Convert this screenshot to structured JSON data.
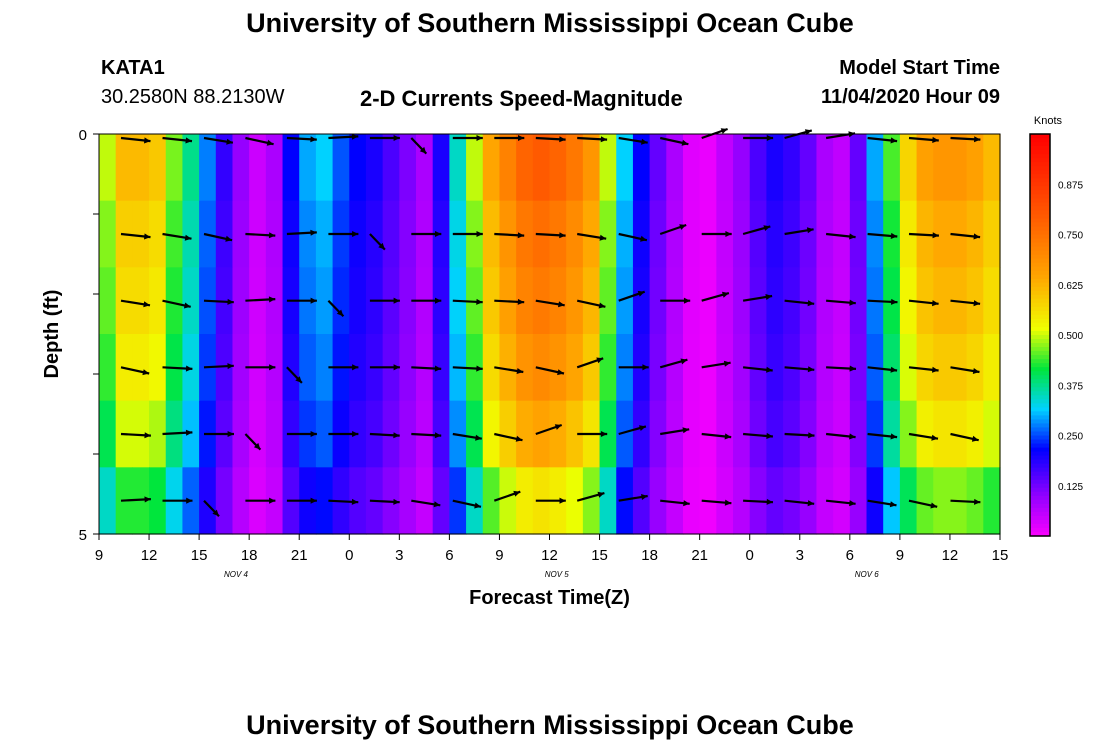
{
  "header": {
    "title": "University of Southern Mississippi Ocean Cube",
    "station_id": "KATA1",
    "station_coords": "30.2580N 88.2130W",
    "plot_title": "2-D Currents Speed-Magnitude",
    "model_label": "Model Start Time",
    "model_start": "11/04/2020 Hour 09"
  },
  "footer": {
    "title": "University of Southern Mississippi Ocean Cube"
  },
  "colorbar": {
    "unit": "Knots",
    "ticks": [
      "0.125",
      "0.250",
      "0.375",
      "0.500",
      "0.625",
      "0.750",
      "0.875"
    ],
    "range": [
      0,
      1
    ]
  },
  "chart_data": {
    "type": "heatmap",
    "xlabel": "Forecast Time(Z)",
    "ylabel": "Depth (ft)",
    "x_ticks": [
      "9",
      "12",
      "15",
      "18",
      "21",
      "0",
      "3",
      "6",
      "9",
      "12",
      "15",
      "18",
      "21",
      "0",
      "3",
      "6",
      "9",
      "12",
      "15"
    ],
    "date_labels": [
      "NOV 4",
      "NOV 5",
      "NOV 6"
    ],
    "y_ticks": [
      "0",
      "5"
    ],
    "ylim": [
      0,
      5
    ],
    "depth_rows": 6,
    "speed_knots_by_time": [
      0.5,
      0.62,
      0.62,
      0.6,
      0.47,
      0.38,
      0.28,
      0.18,
      0.1,
      0.05,
      0.08,
      0.22,
      0.3,
      0.32,
      0.26,
      0.22,
      0.2,
      0.16,
      0.12,
      0.08,
      0.2,
      0.35,
      0.5,
      0.65,
      0.72,
      0.78,
      0.8,
      0.78,
      0.74,
      0.68,
      0.5,
      0.32,
      0.22,
      0.14,
      0.08,
      0.03,
      0.02,
      0.06,
      0.1,
      0.16,
      0.2,
      0.18,
      0.14,
      0.08,
      0.06,
      0.14,
      0.3,
      0.45,
      0.58,
      0.66,
      0.68,
      0.68,
      0.66,
      0.62
    ],
    "depth_factor": [
      1.0,
      0.95,
      0.92,
      0.88,
      0.82,
      0.7
    ],
    "arrow_rows": [
      0,
      1,
      2,
      3,
      4,
      5
    ],
    "arrow_directions_deg": [
      10,
      10,
      15,
      20,
      5,
      -5,
      0,
      60,
      0,
      0,
      5,
      5,
      15,
      20,
      -30,
      0,
      -25,
      -15,
      10,
      8,
      5
    ],
    "arrow_columns": 21
  }
}
